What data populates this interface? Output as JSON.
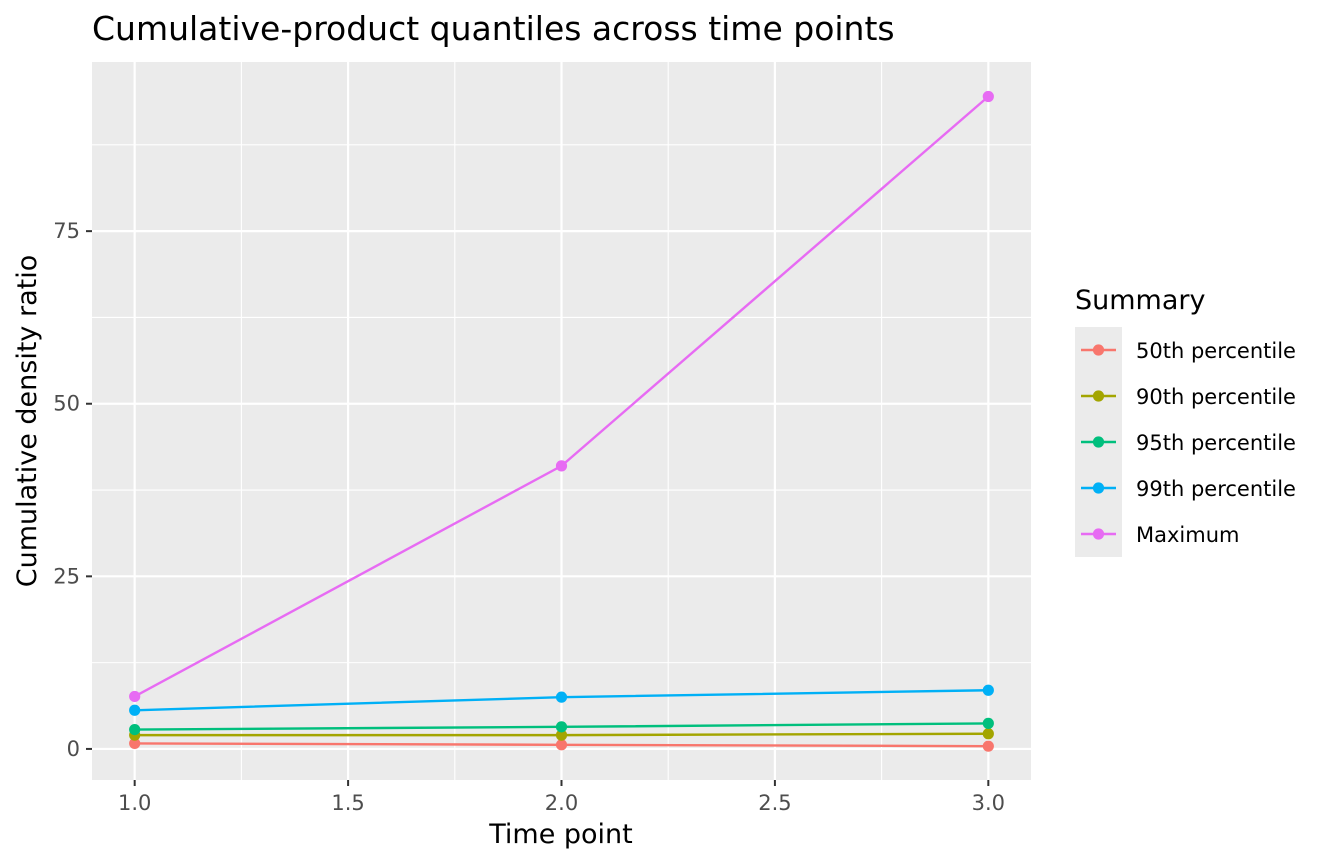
{
  "chart_data": {
    "type": "line",
    "title": "Cumulative-product quantiles across time points",
    "xlabel": "Time point",
    "ylabel": "Cumulative density ratio",
    "x": [
      1,
      2,
      3
    ],
    "xlim": [
      0.9,
      3.1
    ],
    "ylim": [
      -4.5,
      99.5
    ],
    "x_ticks": [
      "1.0",
      "1.5",
      "2.0",
      "2.5",
      "3.0"
    ],
    "y_ticks": [
      "0",
      "25",
      "50",
      "75"
    ],
    "grid": true,
    "legend_title": "Summary",
    "legend_position": "right",
    "series": [
      {
        "name": "50th percentile",
        "color": "#F8766D",
        "values": [
          0.8,
          0.6,
          0.4
        ]
      },
      {
        "name": "90th percentile",
        "color": "#A3A500",
        "values": [
          2.0,
          2.0,
          2.2
        ]
      },
      {
        "name": "95th percentile",
        "color": "#00BF7D",
        "values": [
          2.8,
          3.2,
          3.7
        ]
      },
      {
        "name": "99th percentile",
        "color": "#00B0F6",
        "values": [
          5.6,
          7.5,
          8.5
        ]
      },
      {
        "name": "Maximum",
        "color": "#E76BF3",
        "values": [
          7.6,
          41.0,
          94.5
        ]
      }
    ]
  }
}
